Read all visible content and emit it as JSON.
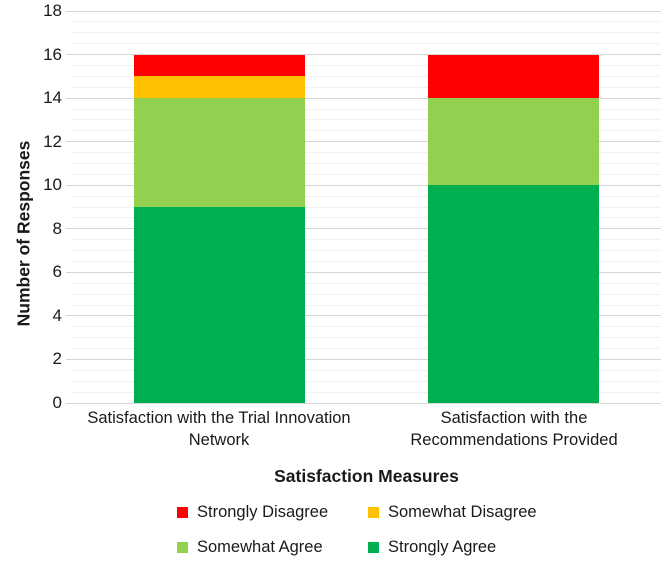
{
  "chart_data": {
    "type": "bar",
    "stacked": true,
    "xlabel": "Satisfaction Measures",
    "ylabel": "Number of Responses",
    "ylim": [
      0,
      18
    ],
    "y_major_step": 2,
    "y_minor_step": 0.5,
    "y_ticks": [
      0,
      2,
      4,
      6,
      8,
      10,
      12,
      14,
      16,
      18
    ],
    "grid": {
      "major_color": "#d6d6d6",
      "minor_color": "#f1f1f1",
      "minor_on": true
    },
    "categories": [
      "Satisfaction with the Trial Innovation Network",
      "Satisfaction with the Recommendations Provided"
    ],
    "category_label_lines": [
      [
        "Satisfaction with the Trial Innovation",
        "Network"
      ],
      [
        "Satisfaction with the",
        "Recommendations Provided"
      ]
    ],
    "series": [
      {
        "name": "Strongly Agree",
        "color": "#00b050",
        "values": [
          9,
          10
        ]
      },
      {
        "name": "Somewhat Agree",
        "color": "#92d050",
        "values": [
          5,
          4
        ]
      },
      {
        "name": "Somewhat Disagree",
        "color": "#ffc000",
        "values": [
          1,
          0
        ]
      },
      {
        "name": "Strongly Disagree",
        "color": "#ff0000",
        "values": [
          1,
          2
        ]
      }
    ],
    "legend": {
      "position": "bottom",
      "rows": [
        [
          "Strongly Disagree",
          "Somewhat Disagree"
        ],
        [
          "Somewhat Agree",
          "Strongly Agree"
        ]
      ]
    }
  }
}
